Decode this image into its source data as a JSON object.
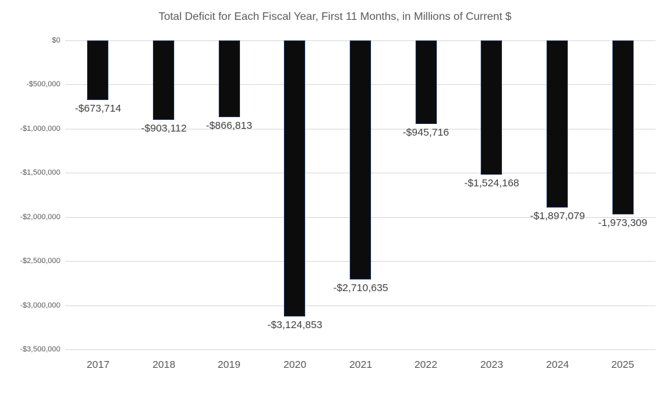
{
  "chart_data": {
    "type": "bar",
    "title": "Total Deficit for Each Fiscal Year, First 11 Months, in Millions of Current $",
    "categories": [
      "2017",
      "2018",
      "2019",
      "2020",
      "2021",
      "2022",
      "2023",
      "2024",
      "2025"
    ],
    "values": [
      -673714,
      -903112,
      -866813,
      -3124853,
      -2710635,
      -945716,
      -1524168,
      -1897079,
      -1973309
    ],
    "data_labels": [
      "-$673,714",
      "-$903,112",
      "-$866,813",
      "-$3,124,853",
      "-$2,710,635",
      "-$945,716",
      "-$1,524,168",
      "-$1,897,079",
      "-1,973,309"
    ],
    "xlabel": "",
    "ylabel": "",
    "ylim": [
      -3500000,
      0
    ],
    "y_ticks": [
      0,
      -500000,
      -1000000,
      -1500000,
      -2000000,
      -2500000,
      -3000000,
      -3500000
    ],
    "y_tick_labels": [
      "$0",
      "-$500,000",
      "-$1,000,000",
      "-$1,500,000",
      "-$2,000,000",
      "-$2,500,000",
      "-$3,000,000",
      "-$3,500,000"
    ],
    "grid": true,
    "legend": false,
    "colors": {
      "bar_fill": "#0c0c0c",
      "bar_border": "#1f3864",
      "gridline": "#d9d9d9",
      "axis_text": "#595959",
      "data_label_text": "#404040",
      "title_text": "#595959",
      "background": "#ffffff"
    }
  }
}
